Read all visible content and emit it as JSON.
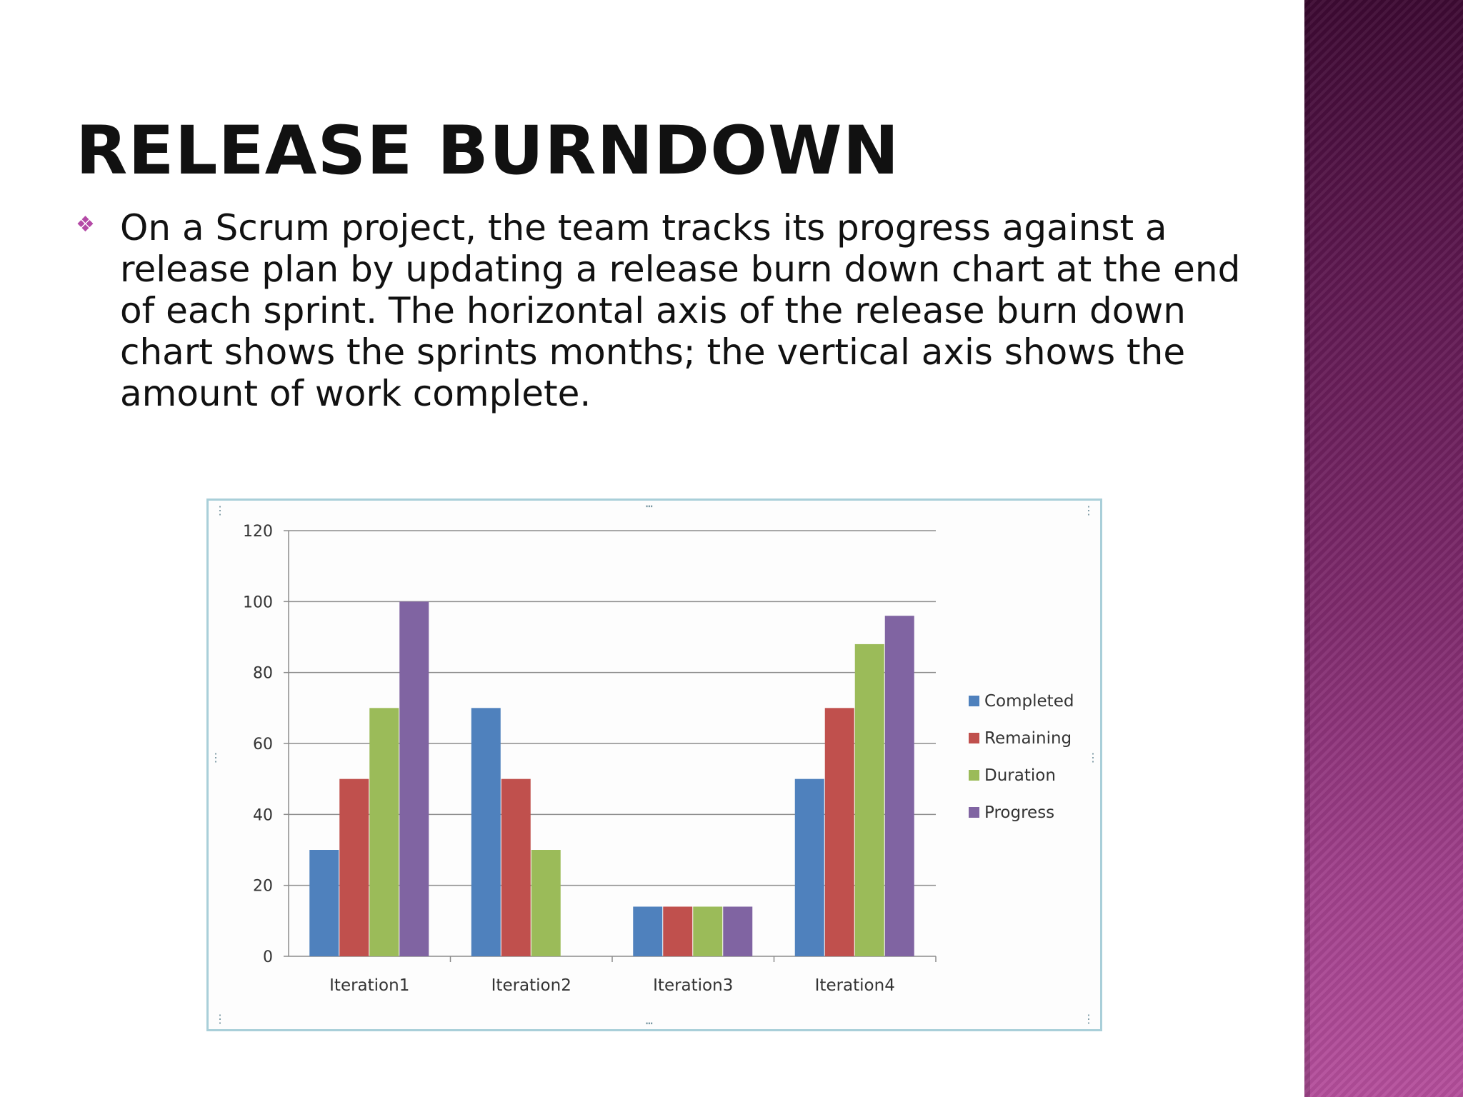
{
  "slide": {
    "title": "RELEASE BURNDOWN",
    "bullet_icon": "diamond-bullet-icon",
    "bullet_text": "On a Scrum project, the team tracks its progress against a release plan by updating a release burn down chart at the end of each sprint. The horizontal axis of the release burn down chart shows the sprints months; the vertical axis shows the amount of work complete.",
    "accent_color": "#b44aa6"
  },
  "chart_data": {
    "type": "bar",
    "categories": [
      "Iteration1",
      "Iteration2",
      "Iteration3",
      "Iteration4"
    ],
    "series": [
      {
        "name": "Completed",
        "color": "#4f81bd",
        "values": [
          30,
          70,
          14,
          50
        ]
      },
      {
        "name": "Remaining",
        "color": "#c0504d",
        "values": [
          50,
          50,
          14,
          70
        ]
      },
      {
        "name": "Duration",
        "color": "#9bbb59",
        "values": [
          70,
          30,
          14,
          88
        ]
      },
      {
        "name": "Progress",
        "color": "#8064a2",
        "values": [
          100,
          0,
          14,
          96
        ]
      }
    ],
    "ylim": [
      0,
      120
    ],
    "yticks": [
      0,
      20,
      40,
      60,
      80,
      100,
      120
    ],
    "grid": true,
    "legend": "right",
    "title": "",
    "xlabel": "",
    "ylabel": ""
  }
}
